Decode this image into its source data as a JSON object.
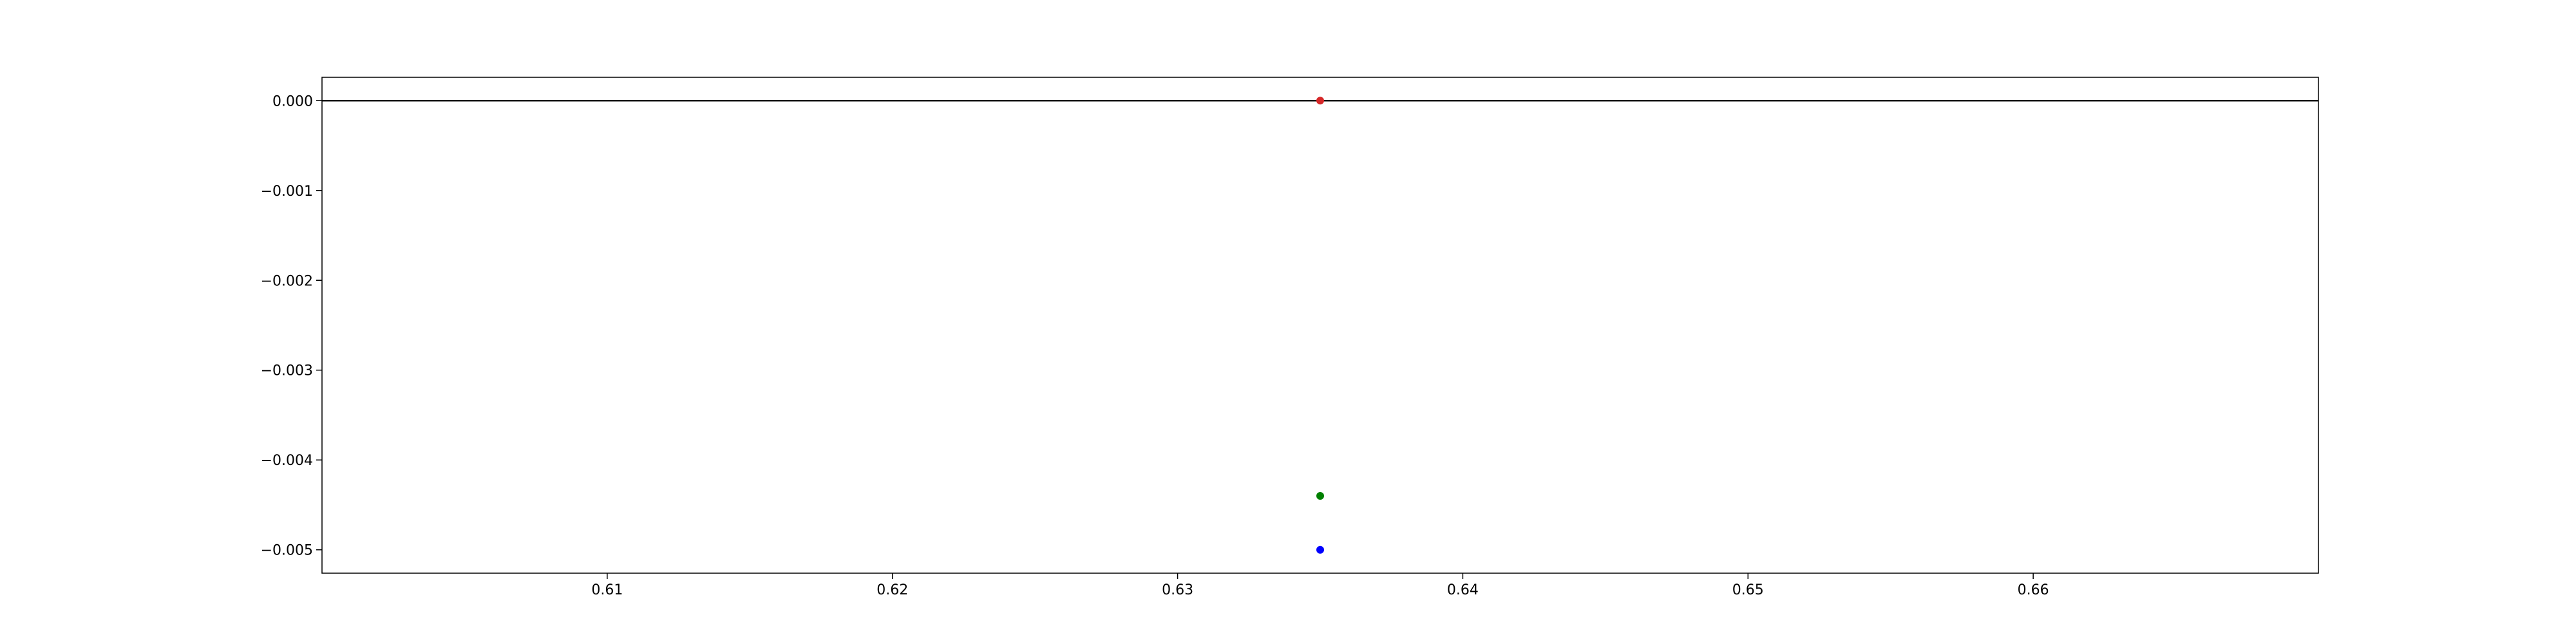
{
  "chart_data": {
    "type": "scatter",
    "title": "",
    "xlabel": "",
    "ylabel": "",
    "xlim": [
      0.6,
      0.67
    ],
    "ylim": [
      -0.00526,
      0.00026
    ],
    "grid": false,
    "x_ticks": [
      0.61,
      0.62,
      0.63,
      0.64,
      0.65,
      0.66
    ],
    "x_tick_labels": [
      "0.61",
      "0.62",
      "0.63",
      "0.64",
      "0.65",
      "0.66"
    ],
    "y_ticks": [
      0.0,
      -0.001,
      -0.002,
      -0.003,
      -0.004,
      -0.005
    ],
    "y_tick_labels": [
      "0.000",
      "−0.001",
      "−0.002",
      "−0.003",
      "−0.004",
      "−0.005"
    ],
    "hline": {
      "y": 0.0,
      "color": "#000000"
    },
    "series": [
      {
        "x": [
          0.635
        ],
        "y": [
          0.0
        ],
        "color": "#d62728"
      },
      {
        "x": [
          0.635
        ],
        "y": [
          -0.0044
        ],
        "color": "#008000"
      },
      {
        "x": [
          0.635
        ],
        "y": [
          -0.005
        ],
        "color": "#0000ff"
      }
    ]
  }
}
